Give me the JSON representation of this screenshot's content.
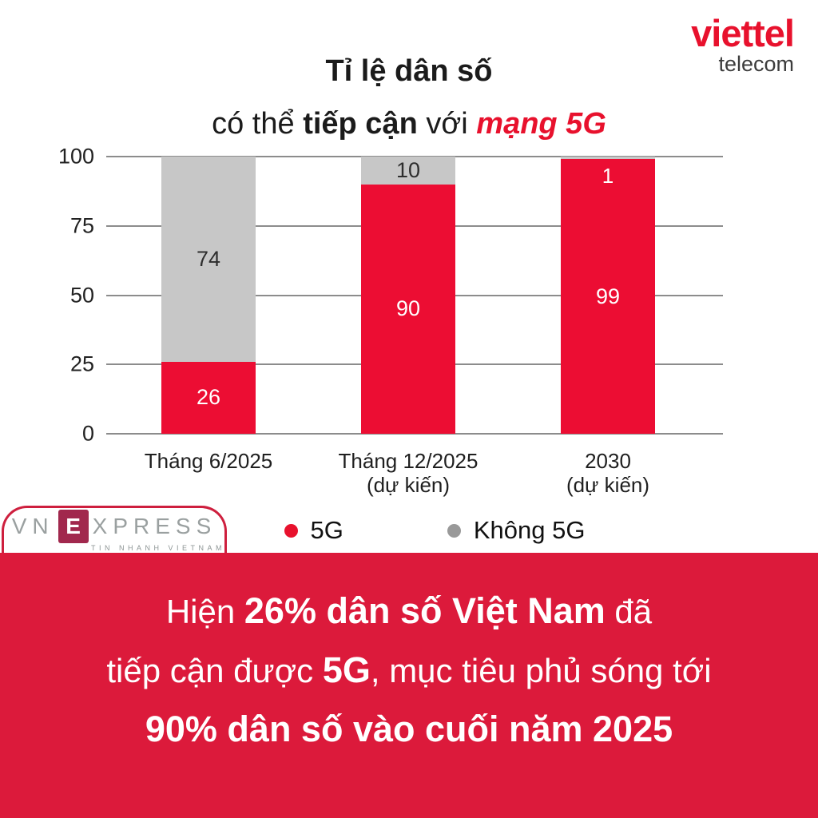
{
  "header": {
    "title_line1": "Tỉ lệ dân số",
    "title_line2": [
      {
        "text": "có thể ",
        "style": "regular"
      },
      {
        "text": "tiếp cận",
        "style": "bold"
      },
      {
        "text": " với ",
        "style": "regular"
      },
      {
        "text": "mạng 5G",
        "style": "accent"
      }
    ],
    "brand": {
      "word": "viettel",
      "sub": "telecom",
      "color": "#E8112D"
    }
  },
  "chart_data": {
    "type": "bar",
    "stacked": true,
    "title": "Tỉ lệ dân số có thể tiếp cận với mạng 5G",
    "categories": [
      [
        "Tháng 6/2025"
      ],
      [
        "Tháng 12/2025",
        "(dự kiến)"
      ],
      [
        "2030",
        "(dự kiến)"
      ]
    ],
    "series": [
      {
        "name": "5G",
        "color": "#EC0D33",
        "values": [
          26,
          90,
          99
        ],
        "label_color": "#ffffff"
      },
      {
        "name": "Không 5G",
        "color": "#C7C7C7",
        "values": [
          74,
          10,
          1
        ],
        "label_colors": [
          "#2e2e2e",
          "#2e2e2e",
          "#ffffff"
        ]
      }
    ],
    "yticks": [
      0,
      25,
      50,
      75,
      100
    ],
    "ylim": [
      0,
      100
    ],
    "grid": true,
    "legend_position": "bottom"
  },
  "legend": {
    "items": [
      {
        "label": "5G",
        "color": "#E8112D"
      },
      {
        "label": "Không 5G",
        "color": "#999999"
      }
    ]
  },
  "footer_logo": {
    "prefix": "VN",
    "boxed_letter": "E",
    "suffix": "XPRESS",
    "tagline": "TIN NHANH VIETNAM",
    "box_color": "#A1284D"
  },
  "banner": {
    "background": "#DC1A3B",
    "lines": [
      [
        {
          "text": "Hiện ",
          "style": "light"
        },
        {
          "text": "26% dân số Việt Nam",
          "style": "bold"
        },
        {
          "text": " đã",
          "style": "light"
        }
      ],
      [
        {
          "text": "tiếp cận được ",
          "style": "light"
        },
        {
          "text": "5G",
          "style": "bold"
        },
        {
          "text": ", mục tiêu phủ sóng tới",
          "style": "light"
        }
      ],
      [
        {
          "text": "90% dân số vào cuối năm 2025",
          "style": "bold"
        }
      ]
    ]
  }
}
